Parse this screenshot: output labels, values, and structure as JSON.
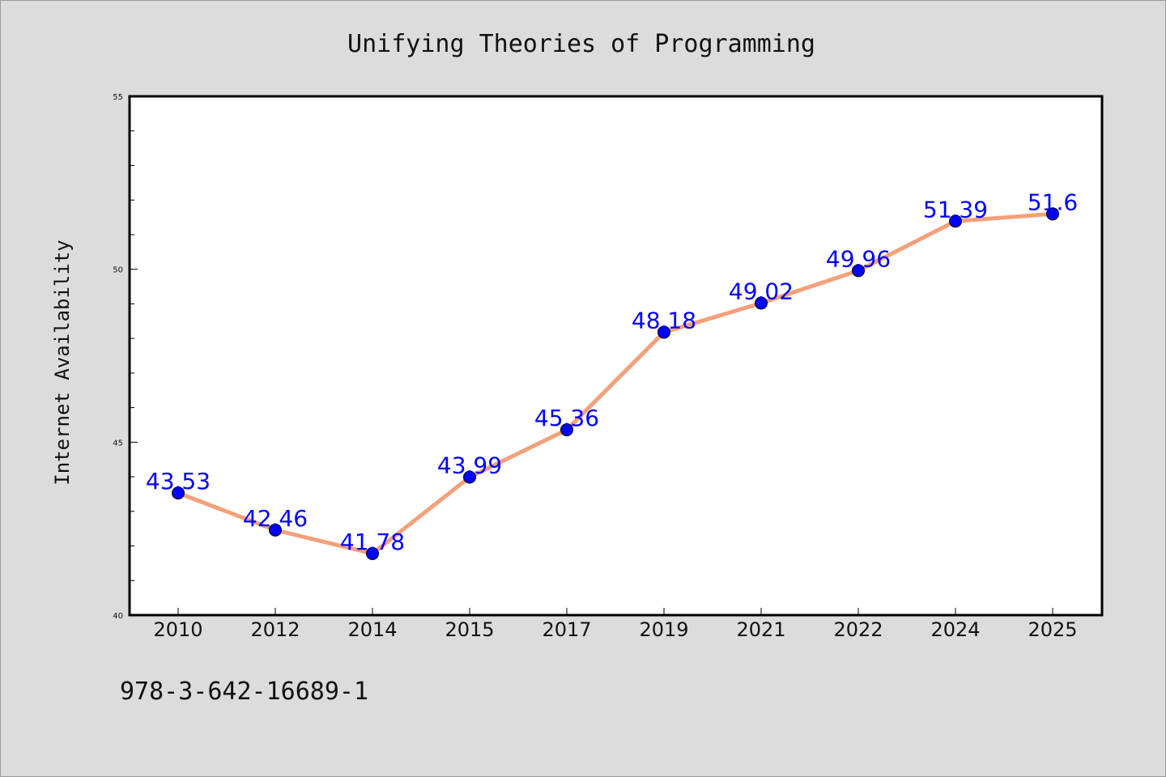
{
  "chart_data": {
    "type": "line",
    "title": "Unifying Theories of Programming",
    "xlabel": "",
    "ylabel": "Internet Availability",
    "categories": [
      "2010",
      "2012",
      "2014",
      "2015",
      "2017",
      "2019",
      "2021",
      "2022",
      "2024",
      "2025"
    ],
    "values": [
      43.53,
      42.46,
      41.78,
      43.99,
      45.36,
      48.18,
      49.02,
      49.96,
      51.39,
      51.6
    ],
    "data_labels": [
      "43.53",
      "42.46",
      "41.78",
      "43.99",
      "45.36",
      "48.18",
      "49.02",
      "49.96",
      "51.39",
      "51.6"
    ],
    "ylim": [
      40,
      55
    ],
    "yticks": [
      "40",
      "45",
      "50",
      "55"
    ],
    "grid": false,
    "colors": {
      "line": "#f4a07a",
      "marker": "#0000ff",
      "label": "#0000ff",
      "background": "#dcdcdc",
      "plot_background": "#ffffff"
    }
  },
  "footnote": "978-3-642-16689-1"
}
